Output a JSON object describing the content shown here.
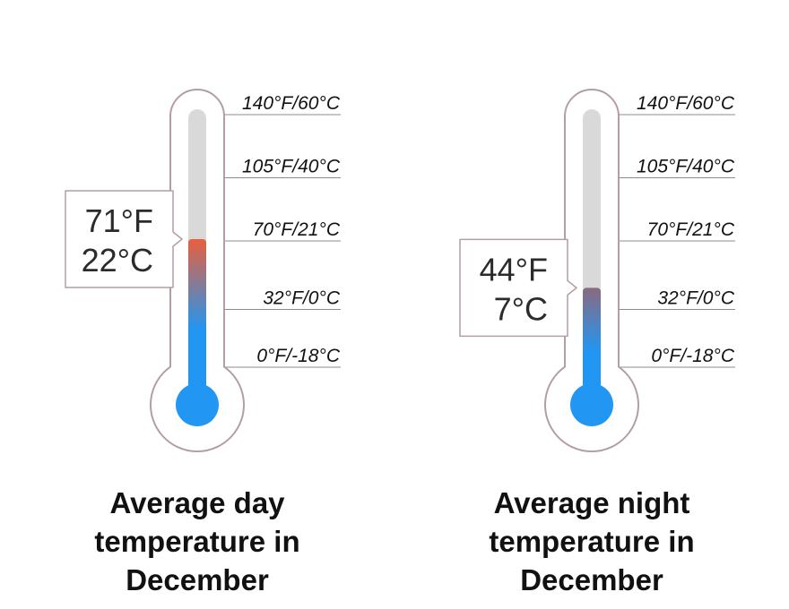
{
  "chart_data": [
    {
      "type": "thermometer",
      "title": "Average day temperature in December",
      "title_lines": [
        "Average day",
        "temperature in",
        "December"
      ],
      "value_f": 71,
      "value_c": 22,
      "reading_f": "71°F",
      "reading_c": "22°C",
      "scale": {
        "unit": "°F",
        "min": -18,
        "max": 140,
        "ticks": [
          {
            "f": 140,
            "label": "140°F/60°C"
          },
          {
            "f": 105,
            "label": "105°F/40°C"
          },
          {
            "f": 70,
            "label": "70°F/21°C"
          },
          {
            "f": 32,
            "label": "32°F/0°C"
          },
          {
            "f": 0,
            "label": "0°F/-18°C"
          }
        ]
      },
      "colors": {
        "cold": "#2196f3",
        "warm": "#e8603c",
        "tube": "#d9d9d9",
        "outline": "#b49ea0"
      }
    },
    {
      "type": "thermometer",
      "title": "Average night temperature in December",
      "title_lines": [
        "Average night",
        "temperature in",
        "December"
      ],
      "value_f": 44,
      "value_c": 7,
      "reading_f": "44°F",
      "reading_c": "7°C",
      "scale": {
        "unit": "°F",
        "min": -18,
        "max": 140,
        "ticks": [
          {
            "f": 140,
            "label": "140°F/60°C"
          },
          {
            "f": 105,
            "label": "105°F/40°C"
          },
          {
            "f": 70,
            "label": "70°F/21°C"
          },
          {
            "f": 32,
            "label": "32°F/0°C"
          },
          {
            "f": 0,
            "label": "0°F/-18°C"
          }
        ]
      },
      "colors": {
        "cold": "#2196f3",
        "warm": "#8a6a80",
        "tube": "#d9d9d9",
        "outline": "#b49ea0"
      }
    }
  ]
}
